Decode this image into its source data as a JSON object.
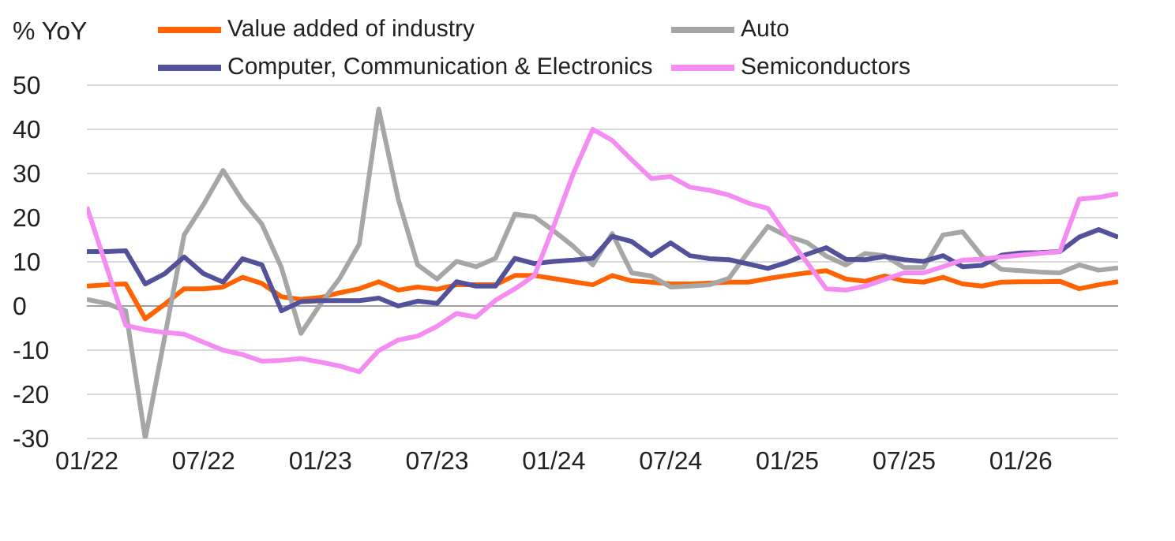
{
  "chart_data": {
    "type": "line",
    "ylabel": "% YoY",
    "x": [
      "2022-01",
      "2022-02",
      "2022-03",
      "2022-04",
      "2022-05",
      "2022-06",
      "2022-07",
      "2022-08",
      "2022-09",
      "2022-10",
      "2022-11",
      "2022-12",
      "2023-01",
      "2023-02",
      "2023-03",
      "2023-04",
      "2023-05",
      "2023-06",
      "2023-07",
      "2023-08",
      "2023-09",
      "2023-10",
      "2023-11",
      "2023-12",
      "2024-01",
      "2024-02",
      "2024-03",
      "2024-04",
      "2024-05",
      "2024-06",
      "2024-07",
      "2024-08",
      "2024-09",
      "2024-10",
      "2024-11",
      "2024-12",
      "2025-01",
      "2025-02",
      "2025-03",
      "2025-04",
      "2025-05",
      "2025-06",
      "2025-07",
      "2025-08",
      "2025-09",
      "2025-10",
      "2025-11",
      "2025-12",
      "2026-01",
      "2026-02",
      "2026-03",
      "2026-04",
      "2026-05",
      "2026-06"
    ],
    "series": [
      {
        "name": "Value added of industry",
        "color": "#ff6200",
        "values": [
          4.5,
          4.8,
          5.0,
          -2.9,
          0.4,
          3.9,
          3.9,
          4.3,
          6.5,
          5.1,
          2.1,
          1.5,
          1.9,
          3.0,
          3.9,
          5.5,
          3.6,
          4.3,
          3.8,
          4.8,
          4.8,
          4.8,
          6.9,
          6.9,
          6.2,
          5.5,
          4.8,
          6.9,
          5.7,
          5.4,
          5.0,
          5.0,
          5.2,
          5.4,
          5.4,
          6.2,
          6.9,
          7.5,
          8.0,
          6.1,
          5.6,
          6.8,
          5.7,
          5.4,
          6.5,
          5.0,
          4.5,
          5.4,
          5.5,
          5.5,
          5.6,
          3.9,
          4.8,
          5.5
        ]
      },
      {
        "name": "Auto",
        "color": "#a6a6a6",
        "values": [
          1.5,
          0.6,
          -1.1,
          -30,
          -7,
          16.1,
          23,
          30.7,
          23.8,
          18.5,
          8.7,
          -6.2,
          0.4,
          6.3,
          14,
          44.6,
          24.2,
          9.3,
          6.1,
          10.1,
          8.9,
          10.8,
          20.8,
          20.2,
          17,
          13.5,
          9.3,
          16.4,
          7.5,
          6.8,
          4.3,
          4.5,
          4.8,
          6.3,
          12.3,
          18,
          15.8,
          14.4,
          11.3,
          9.3,
          11.9,
          11.4,
          8.7,
          8.7,
          16.1,
          16.8,
          11.3,
          8.3,
          8.0,
          7.7,
          7.5,
          9.3,
          8.1,
          8.6
        ]
      },
      {
        "name": "Computer, Communication & Electronics",
        "color": "#525199",
        "values": [
          12.3,
          12.3,
          12.5,
          5.0,
          7.3,
          11.1,
          7.3,
          5.4,
          10.7,
          9.3,
          -1.1,
          1.0,
          1.2,
          1.2,
          1.2,
          1.8,
          0,
          1.1,
          0.6,
          5.5,
          4.5,
          4.5,
          10.8,
          9.6,
          10.1,
          10.4,
          10.8,
          15.8,
          14.6,
          11.4,
          14.3,
          11.4,
          10.7,
          10.5,
          9.5,
          8.5,
          9.9,
          11.7,
          13.2,
          10.6,
          10.5,
          11.2,
          10.5,
          10.1,
          11.4,
          8.9,
          9.2,
          11.5,
          12,
          12.1,
          12.3,
          15.6,
          17.3,
          15.6
        ]
      },
      {
        "name": "Semiconductors",
        "color": "#f58cf2",
        "values": [
          22.4,
          9,
          -4.4,
          -5.4,
          -6,
          -6.4,
          -8.2,
          -10,
          -11,
          -12.5,
          -12.3,
          -11.9,
          -12.7,
          -13.6,
          -14.9,
          -10.1,
          -7.7,
          -6.8,
          -4.6,
          -1.7,
          -2.5,
          1.3,
          3.9,
          6.9,
          18.2,
          30,
          40,
          37.5,
          33.1,
          28.9,
          29.3,
          26.9,
          26.2,
          25.1,
          23.3,
          22.1,
          15.8,
          9.9,
          3.9,
          3.6,
          4.5,
          6.0,
          7.5,
          7.5,
          8.9,
          10.4,
          10.6,
          11.1,
          11.5,
          11.9,
          12.3,
          24.2,
          24.6,
          25.4
        ]
      }
    ],
    "xlim": [
      "2022-01",
      "2026-06"
    ],
    "xticks": [
      {
        "value": "2022-01",
        "label": "01/22"
      },
      {
        "value": "2022-07",
        "label": "07/22"
      },
      {
        "value": "2023-01",
        "label": "01/23"
      },
      {
        "value": "2023-07",
        "label": "07/23"
      },
      {
        "value": "2024-01",
        "label": "01/24"
      },
      {
        "value": "2024-07",
        "label": "07/24"
      },
      {
        "value": "2025-01",
        "label": "01/25"
      },
      {
        "value": "2025-07",
        "label": "07/25"
      },
      {
        "value": "2026-01",
        "label": "01/26"
      }
    ],
    "ylim": [
      -30,
      50
    ],
    "yticks": [
      -30,
      -20,
      -10,
      0,
      10,
      20,
      30,
      40,
      50
    ],
    "grid": "y",
    "legend": "top",
    "marker": "none",
    "line_style": "solid"
  }
}
